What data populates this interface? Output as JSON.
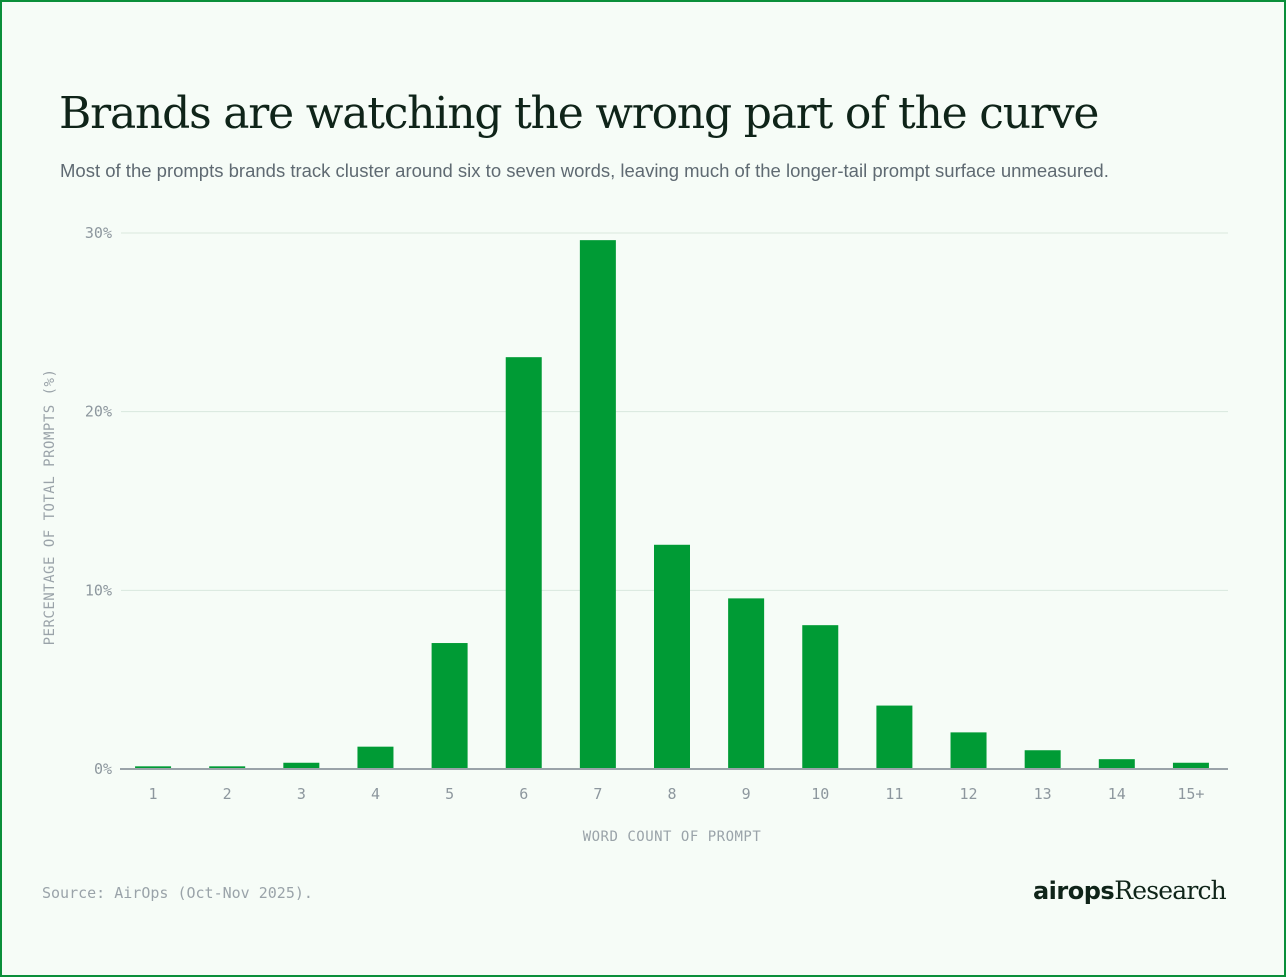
{
  "header": {
    "title": "Brands are watching the wrong part of the curve",
    "subtitle": "Most of the prompts brands track cluster around six to seven words, leaving much of the longer-tail prompt surface unmeasured."
  },
  "footer": {
    "source": "Source: AirOps (Oct-Nov 2025).",
    "brand_logo": "airops",
    "brand_suffix": "Research"
  },
  "colors": {
    "bar": "#009b35",
    "grid": "#d9e8de",
    "axis": "#9aa3a9"
  },
  "chart_data": {
    "type": "bar",
    "title": "Brands are watching the wrong part of the curve",
    "xlabel": "WORD COUNT OF PROMPT",
    "ylabel": "PERCENTAGE OF TOTAL PROMPTS (%)",
    "categories": [
      "1",
      "2",
      "3",
      "4",
      "5",
      "6",
      "7",
      "8",
      "9",
      "10",
      "11",
      "12",
      "13",
      "14",
      "15+"
    ],
    "values": [
      0.15,
      0.15,
      0.35,
      1.25,
      7.05,
      23.05,
      29.6,
      12.55,
      9.55,
      8.05,
      3.55,
      2.05,
      1.05,
      0.55,
      0.35
    ],
    "yticks": [
      0,
      10,
      20,
      30
    ],
    "ytick_labels": [
      "0%",
      "10%",
      "20%",
      "30%"
    ],
    "ylim": [
      0,
      30
    ],
    "grid": true
  }
}
